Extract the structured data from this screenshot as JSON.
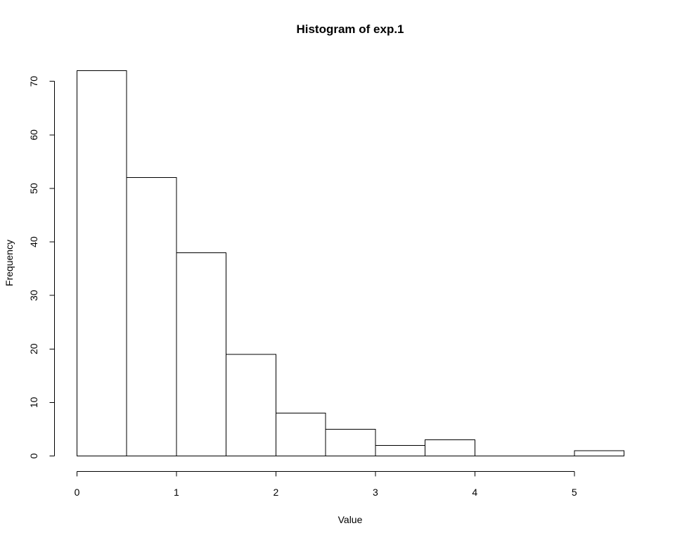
{
  "chart_data": {
    "type": "bar",
    "title": "Histogram of exp.1",
    "xlabel": "Value",
    "ylabel": "Frequency",
    "bins": [
      {
        "from": 0.0,
        "to": 0.5,
        "count": 72
      },
      {
        "from": 0.5,
        "to": 1.0,
        "count": 52
      },
      {
        "from": 1.0,
        "to": 1.5,
        "count": 38
      },
      {
        "from": 1.5,
        "to": 2.0,
        "count": 19
      },
      {
        "from": 2.0,
        "to": 2.5,
        "count": 8
      },
      {
        "from": 2.5,
        "to": 3.0,
        "count": 5
      },
      {
        "from": 3.0,
        "to": 3.5,
        "count": 2
      },
      {
        "from": 3.5,
        "to": 4.0,
        "count": 3
      },
      {
        "from": 4.0,
        "to": 4.5,
        "count": 0
      },
      {
        "from": 4.5,
        "to": 5.0,
        "count": 0
      },
      {
        "from": 5.0,
        "to": 5.5,
        "count": 1
      }
    ],
    "xlim": [
      0,
      5.5
    ],
    "ylim": [
      0,
      72
    ],
    "x_ticks": [
      0,
      1,
      2,
      3,
      4,
      5
    ],
    "y_ticks": [
      0,
      10,
      20,
      30,
      40,
      50,
      60,
      70
    ],
    "grid": false,
    "bar_fill": "#ffffff",
    "bar_stroke": "#000000"
  }
}
